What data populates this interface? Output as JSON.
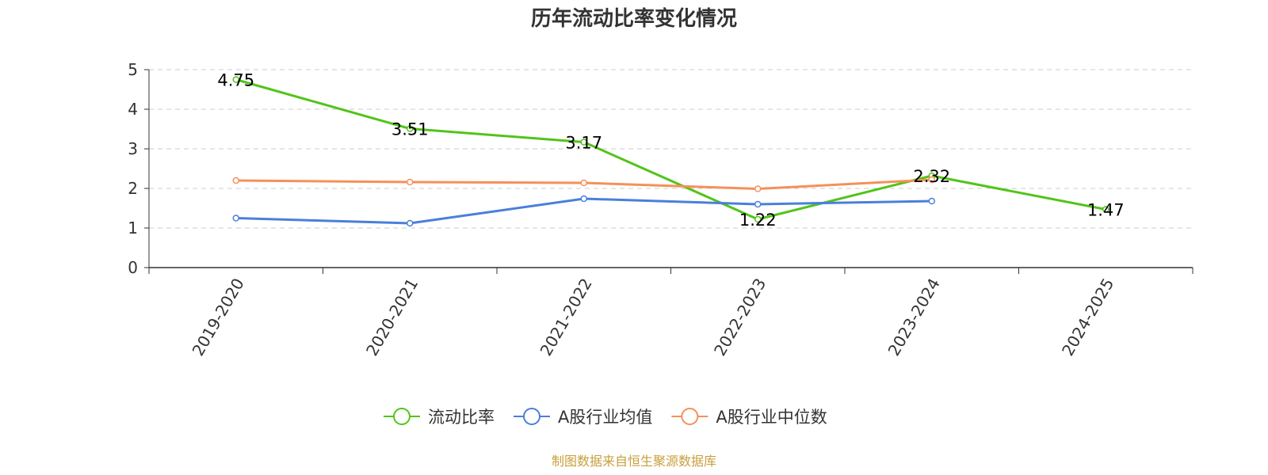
{
  "chart_data": {
    "type": "line",
    "title": "历年流动比率变化情况",
    "categories": [
      "2019-2020",
      "2020-2021",
      "2021-2022",
      "2022-2023",
      "2023-2024",
      "2024-2025"
    ],
    "ylim": [
      0,
      5
    ],
    "yticks": [
      0,
      1,
      2,
      3,
      4,
      5
    ],
    "grid": true,
    "legend_position": "bottom",
    "series": [
      {
        "name": "流动比率",
        "color": "#52c41a",
        "values": [
          4.75,
          3.51,
          3.17,
          1.22,
          2.32,
          1.47
        ],
        "data_labels": [
          "4.75",
          "3.51",
          "3.17",
          "1.22",
          "2.32",
          "1.47"
        ]
      },
      {
        "name": "A股行业均值",
        "color": "#4a7fdb",
        "values": [
          1.25,
          1.12,
          1.74,
          1.6,
          1.68,
          null
        ]
      },
      {
        "name": "A股行业中位数",
        "color": "#f5905a",
        "values": [
          2.2,
          2.16,
          2.14,
          1.99,
          2.22,
          null
        ]
      }
    ],
    "source_note": "制图数据来自恒生聚源数据库"
  }
}
